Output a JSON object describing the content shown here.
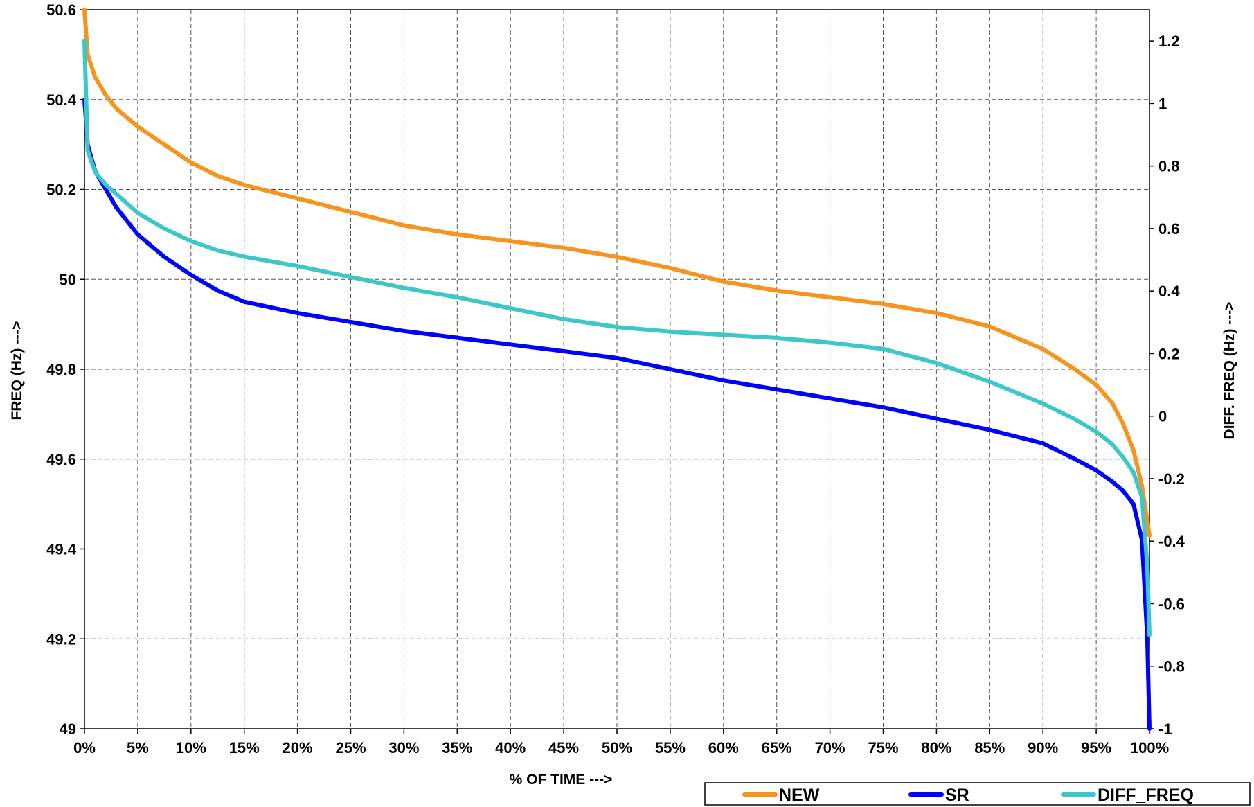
{
  "chart_data": {
    "type": "line",
    "title": "",
    "xlabel": "% OF TIME  --->",
    "ylabel": "FREQ (Hz) --->",
    "y2label": "DIFF. FREQ (Hz) --->",
    "xlim": [
      0,
      100
    ],
    "ylim": [
      49,
      50.6
    ],
    "y2lim": [
      -1,
      1.3
    ],
    "x_ticks": [
      "0%",
      "5%",
      "10%",
      "15%",
      "20%",
      "25%",
      "30%",
      "35%",
      "40%",
      "45%",
      "50%",
      "55%",
      "60%",
      "65%",
      "70%",
      "75%",
      "80%",
      "85%",
      "90%",
      "95%",
      "100%"
    ],
    "y_ticks": [
      "49",
      "49.2",
      "49.4",
      "49.6",
      "49.8",
      "50",
      "50.2",
      "50.4",
      "50.6"
    ],
    "y2_ticks": [
      "-1",
      "-0.8",
      "-0.6",
      "-0.4",
      "-0.2",
      "0",
      "0.2",
      "0.4",
      "0.6",
      "0.8",
      "1",
      "1.2"
    ],
    "grid": true,
    "legend_position": "bottom-right",
    "series": [
      {
        "name": "NEW",
        "color": "#F7941D",
        "axis": "left",
        "x": [
          0,
          0.3,
          1,
          2,
          3,
          5,
          7.5,
          10,
          12.5,
          15,
          20,
          25,
          30,
          35,
          40,
          45,
          50,
          55,
          60,
          65,
          70,
          75,
          80,
          85,
          90,
          93,
          95,
          96.5,
          97.5,
          98.5,
          99.3,
          100
        ],
        "values": [
          50.6,
          50.5,
          50.45,
          50.41,
          50.38,
          50.34,
          50.3,
          50.26,
          50.23,
          50.21,
          50.18,
          50.15,
          50.12,
          50.1,
          50.085,
          50.07,
          50.05,
          50.025,
          49.995,
          49.975,
          49.96,
          49.945,
          49.925,
          49.895,
          49.845,
          49.8,
          49.765,
          49.725,
          49.68,
          49.62,
          49.54,
          49.43
        ]
      },
      {
        "name": "SR",
        "color": "#0000FF",
        "axis": "left",
        "x": [
          0,
          0.3,
          1,
          2,
          3,
          5,
          7.5,
          10,
          12.5,
          15,
          20,
          25,
          30,
          35,
          40,
          45,
          50,
          55,
          60,
          65,
          70,
          75,
          80,
          85,
          90,
          93,
          95,
          96.5,
          97.5,
          98.5,
          99.3,
          99.8,
          100
        ],
        "values": [
          50.4,
          50.3,
          50.24,
          50.2,
          50.16,
          50.1,
          50.05,
          50.01,
          49.975,
          49.95,
          49.925,
          49.905,
          49.885,
          49.87,
          49.855,
          49.84,
          49.825,
          49.8,
          49.775,
          49.755,
          49.735,
          49.715,
          49.69,
          49.665,
          49.635,
          49.6,
          49.575,
          49.55,
          49.53,
          49.5,
          49.42,
          49.2,
          49.0
        ]
      },
      {
        "name": "DIFF_FREQ",
        "color": "#3CC8C8",
        "axis": "right",
        "x": [
          0,
          0.3,
          1,
          2,
          3,
          5,
          7.5,
          10,
          12.5,
          15,
          20,
          25,
          30,
          35,
          40,
          45,
          50,
          55,
          60,
          65,
          70,
          75,
          80,
          85,
          90,
          93,
          95,
          96.5,
          97.5,
          98.5,
          99.3,
          99.8,
          100
        ],
        "values": [
          1.2,
          0.85,
          0.78,
          0.74,
          0.71,
          0.65,
          0.6,
          0.56,
          0.53,
          0.51,
          0.48,
          0.445,
          0.41,
          0.38,
          0.345,
          0.31,
          0.285,
          0.27,
          0.26,
          0.25,
          0.235,
          0.215,
          0.17,
          0.11,
          0.04,
          -0.01,
          -0.05,
          -0.09,
          -0.13,
          -0.18,
          -0.26,
          -0.48,
          -0.7
        ]
      }
    ]
  }
}
